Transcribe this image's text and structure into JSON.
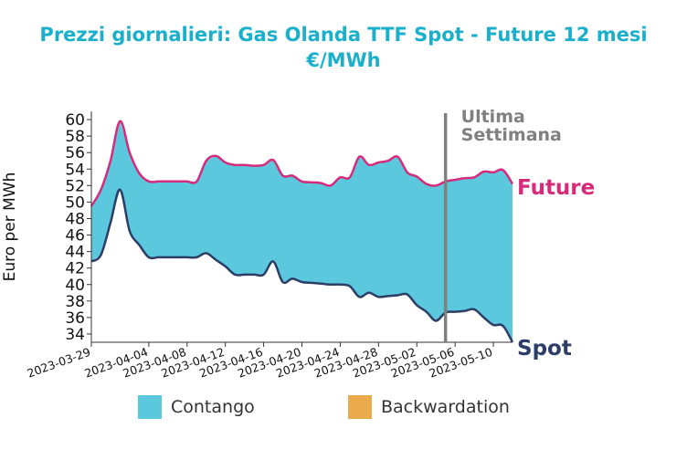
{
  "title_line1": "Prezzi giornalieri: Gas Olanda TTF Spot - Future 12 mesi",
  "title_line2": "€/MWh",
  "colors": {
    "title": "#1ab0cc",
    "future": "#d62b7a",
    "spot": "#2c3e66",
    "contango": "#5bc8dd",
    "backwardation": "#eaa94b",
    "marker": "#808080"
  },
  "legend": [
    {
      "name": "Contango",
      "color": "#5bc8dd"
    },
    {
      "name": "Backwardation",
      "color": "#eaa94b"
    }
  ],
  "chart_data": {
    "type": "area",
    "ylabel": "Euro per MWh",
    "ylim": [
      33,
      61
    ],
    "yticks": [
      34,
      36,
      38,
      40,
      42,
      44,
      46,
      48,
      50,
      52,
      54,
      56,
      58,
      60
    ],
    "xticks": [
      "2023-03-29",
      "2023-04-04",
      "2023-04-08",
      "2023-04-12",
      "2023-04-16",
      "2023-04-20",
      "2023-04-24",
      "2023-04-28",
      "2023-05-02",
      "2023-05-06",
      "2023-05-10"
    ],
    "x": [
      "2023-03-29",
      "2023-03-30",
      "2023-03-31",
      "2023-04-01",
      "2023-04-02",
      "2023-04-03",
      "2023-04-04",
      "2023-04-05",
      "2023-04-06",
      "2023-04-07",
      "2023-04-08",
      "2023-04-09",
      "2023-04-10",
      "2023-04-11",
      "2023-04-12",
      "2023-04-13",
      "2023-04-14",
      "2023-04-15",
      "2023-04-16",
      "2023-04-17",
      "2023-04-18",
      "2023-04-19",
      "2023-04-20",
      "2023-04-21",
      "2023-04-22",
      "2023-04-23",
      "2023-04-24",
      "2023-04-25",
      "2023-04-26",
      "2023-04-27",
      "2023-04-28",
      "2023-04-29",
      "2023-04-30",
      "2023-05-01",
      "2023-05-02",
      "2023-05-03",
      "2023-05-04",
      "2023-05-05",
      "2023-05-06",
      "2023-05-07",
      "2023-05-08",
      "2023-05-09",
      "2023-05-10",
      "2023-05-11",
      "2023-05-12"
    ],
    "series": [
      {
        "name": "Future",
        "values": [
          49.5,
          51.5,
          55.0,
          59.8,
          56.0,
          53.5,
          52.5,
          52.5,
          52.5,
          52.5,
          52.5,
          52.5,
          55.0,
          55.6,
          54.8,
          54.5,
          54.5,
          54.4,
          54.5,
          55.1,
          53.2,
          53.2,
          52.5,
          52.4,
          52.3,
          52.0,
          53.0,
          53.0,
          55.5,
          54.5,
          54.8,
          55.0,
          55.5,
          53.6,
          53.1,
          52.2,
          52.0,
          52.5,
          52.7,
          52.9,
          53.0,
          53.7,
          53.6,
          53.9,
          52.2
        ]
      },
      {
        "name": "Spot",
        "values": [
          42.8,
          43.6,
          47.5,
          51.5,
          46.5,
          44.8,
          43.3,
          43.3,
          43.3,
          43.3,
          43.3,
          43.3,
          43.8,
          43.0,
          42.2,
          41.2,
          41.2,
          41.2,
          41.2,
          42.8,
          40.3,
          40.7,
          40.3,
          40.2,
          40.1,
          40.0,
          40.0,
          39.8,
          38.5,
          39.0,
          38.5,
          38.6,
          38.7,
          38.8,
          37.5,
          36.7,
          35.6,
          36.6,
          36.7,
          36.8,
          37.0,
          36.0,
          35.1,
          35.0,
          33.0
        ]
      }
    ],
    "series_labels": [
      "Future",
      "Spot"
    ],
    "marker_date": "2023-05-05",
    "marker_label_line1": "Ultima",
    "marker_label_line2": "Settimana"
  }
}
